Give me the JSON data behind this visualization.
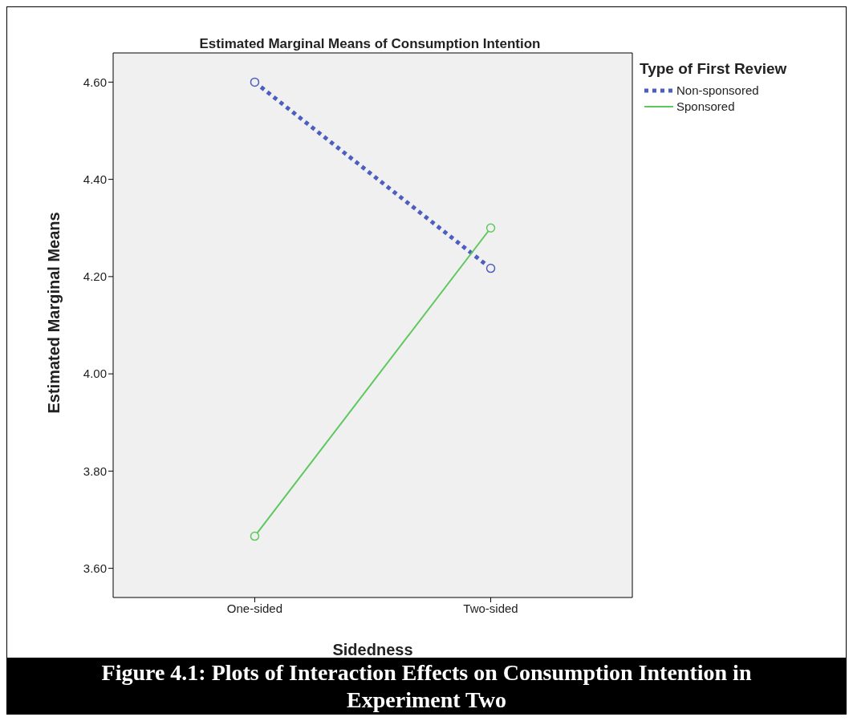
{
  "chart_data": {
    "type": "line",
    "title": "Estimated Marginal Means of Consumption Intention",
    "xlabel": "Sidedness",
    "ylabel": "Estimated Marginal Means",
    "legend_title": "Type of First Review",
    "categories": [
      "One-sided",
      "Two-sided"
    ],
    "series": [
      {
        "name": "Non-sponsored",
        "color": "#4c5fc0",
        "values": [
          4.6,
          4.217
        ],
        "line_style": "dotted"
      },
      {
        "name": "Sponsored",
        "color": "#5dc85d",
        "values": [
          3.666,
          4.3
        ],
        "line_style": "solid"
      }
    ],
    "ylim": [
      3.54,
      4.66
    ],
    "yticks": [
      {
        "value": 3.6,
        "label": "3.60"
      },
      {
        "value": 3.8,
        "label": "3.80"
      },
      {
        "value": 4.0,
        "label": "4.00"
      },
      {
        "value": 4.2,
        "label": "4.20"
      },
      {
        "value": 4.4,
        "label": "4.40"
      },
      {
        "value": 4.6,
        "label": "4.60"
      }
    ],
    "grid": false,
    "legend": "top right",
    "marker": "circle",
    "annotations": [
      "Figure 4.1: Plots of Interaction Effects on Consumption Intention in Experiment Two"
    ]
  }
}
